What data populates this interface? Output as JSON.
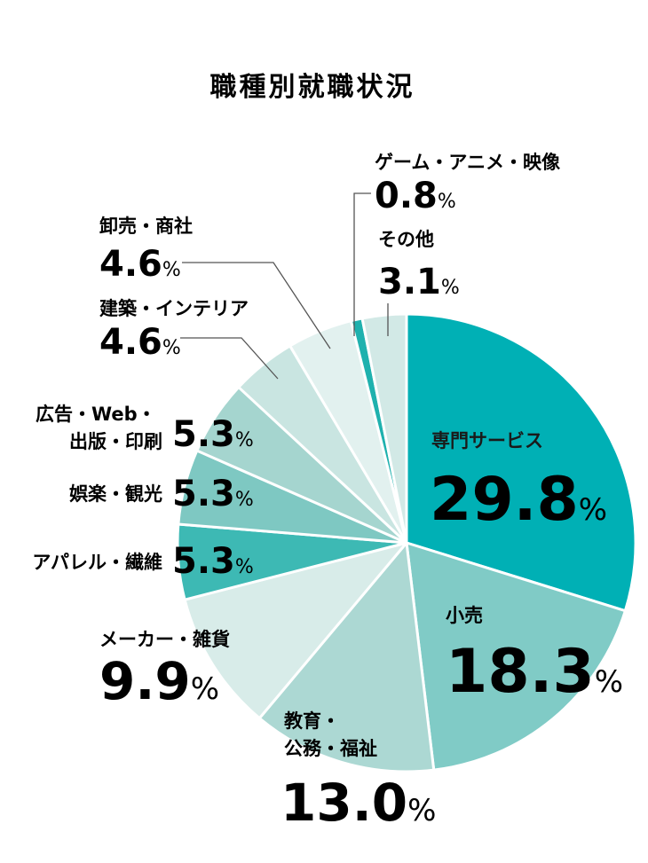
{
  "chart_data": {
    "type": "pie",
    "title": "職種別就職状況",
    "unit": "%",
    "slices": [
      {
        "label": "専門サービス",
        "value": 29.8,
        "value_label": "29.8",
        "color": "#00b0b5"
      },
      {
        "label": "小売",
        "value": 18.3,
        "value_label": "18.3",
        "color": "#80cbc6"
      },
      {
        "label": "教育・公務・福祉",
        "value": 13.0,
        "value_label": "13.0",
        "color": "#acd8d3"
      },
      {
        "label": "メーカー・雑貨",
        "value": 9.9,
        "value_label": "9.9",
        "color": "#d8ece9"
      },
      {
        "label": "アパレル・繊維",
        "value": 5.3,
        "value_label": "5.3",
        "color": "#3db9b4"
      },
      {
        "label": "娯楽・観光",
        "value": 5.3,
        "value_label": "5.3",
        "color": "#7ec8c2"
      },
      {
        "label": "広告・Web・出版・印刷",
        "value": 5.3,
        "value_label": "5.3",
        "color": "#a5d5cf"
      },
      {
        "label": "建築・インテリア",
        "value": 4.6,
        "value_label": "4.6",
        "color": "#c9e5e1"
      },
      {
        "label": "卸売・商社",
        "value": 4.6,
        "value_label": "4.6",
        "color": "#e2f1ef"
      },
      {
        "label": "ゲーム・アニメ・映像",
        "value": 0.8,
        "value_label": "0.8",
        "color": "#1fb1ae"
      },
      {
        "label": "その他",
        "value": 3.1,
        "value_label": "3.1",
        "color": "#d2e9e6"
      }
    ]
  }
}
